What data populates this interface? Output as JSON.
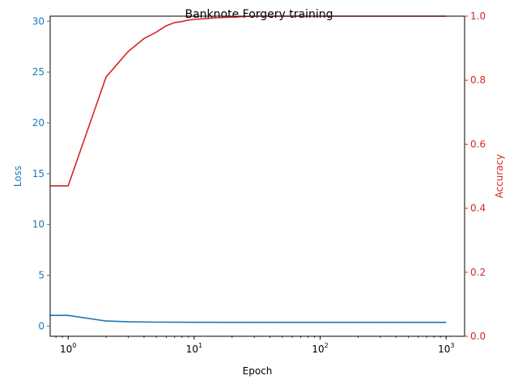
{
  "chart_data": {
    "type": "line",
    "title": "Banknote Forgery training",
    "xlabel": "Epoch",
    "x_scale": "log",
    "xlim": [
      0.72,
      1400
    ],
    "x_ticks": [
      {
        "value": 1,
        "base": "10",
        "exp": "0"
      },
      {
        "value": 10,
        "base": "10",
        "exp": "1"
      },
      {
        "value": 100,
        "base": "10",
        "exp": "2"
      },
      {
        "value": 1000,
        "base": "10",
        "exp": "3"
      }
    ],
    "grid": false,
    "legend": "none",
    "y_left": {
      "label": "Loss",
      "color": "#1f77b4",
      "lim": [
        -1,
        30.5
      ],
      "ticks": [
        "0",
        "5",
        "10",
        "15",
        "20",
        "25",
        "30"
      ]
    },
    "y_right": {
      "label": "Accuracy",
      "color": "#d62728",
      "lim": [
        0,
        1.0
      ],
      "ticks": [
        "0.0",
        "0.2",
        "0.4",
        "0.6",
        "0.8",
        "1.0"
      ]
    },
    "series": [
      {
        "axis": "left",
        "color": "#1f77b4",
        "x": [
          0.72,
          1,
          2,
          3,
          5,
          10,
          20,
          50,
          100,
          200,
          500,
          1000
        ],
        "y": [
          1.05,
          1.05,
          0.5,
          0.42,
          0.39,
          0.38,
          0.37,
          0.37,
          0.37,
          0.37,
          0.37,
          0.37
        ]
      },
      {
        "axis": "right",
        "color": "#d62728",
        "x": [
          0.72,
          1,
          2,
          3,
          4,
          5,
          6,
          7,
          8,
          9,
          10,
          12,
          15,
          20,
          25,
          30,
          40,
          60,
          100,
          300,
          1000
        ],
        "y": [
          0.47,
          0.47,
          0.81,
          0.89,
          0.93,
          0.95,
          0.97,
          0.98,
          0.983,
          0.988,
          0.99,
          0.992,
          0.995,
          0.997,
          0.999,
          1.0,
          1.0,
          1.0,
          1.0,
          1.0,
          1.0
        ]
      }
    ]
  }
}
